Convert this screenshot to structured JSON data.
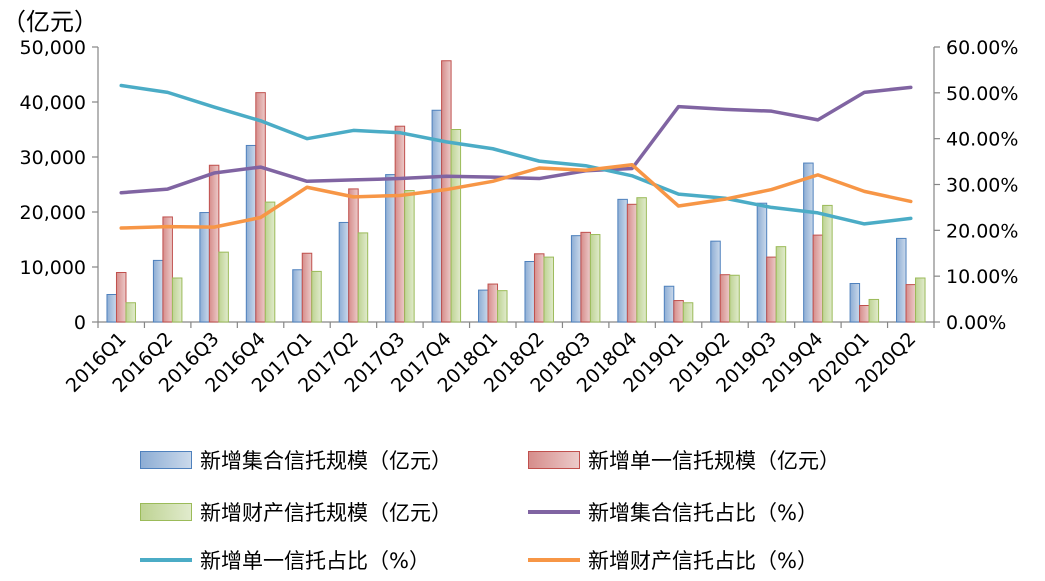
{
  "chart_data": {
    "type": "bar",
    "unit_label": "（亿元）",
    "categories": [
      "2016Q1",
      "2016Q2",
      "2016Q3",
      "2016Q4",
      "2017Q1",
      "2017Q2",
      "2017Q3",
      "2017Q4",
      "2018Q1",
      "2018Q2",
      "2018Q3",
      "2018Q4",
      "2019Q1",
      "2019Q2",
      "2019Q3",
      "2019Q4",
      "2020Q1",
      "2020Q2"
    ],
    "y_left": {
      "ticks": [
        "50,000",
        "40,000",
        "30,000",
        "20,000",
        "10,000",
        "0"
      ],
      "ylim": [
        0,
        50000
      ]
    },
    "y_right": {
      "ticks": [
        "60.00%",
        "50.00%",
        "40.00%",
        "30.00%",
        "20.00%",
        "10.00%",
        "0.00%"
      ],
      "ylim": [
        0,
        60
      ]
    },
    "grid": false,
    "legend_position": "bottom",
    "series": [
      {
        "name": "新增集合信托规模（亿元）",
        "kind": "bar",
        "axis": "left",
        "color": "#4F81BD",
        "values": [
          5000,
          11200,
          19900,
          32100,
          9500,
          18100,
          26800,
          38500,
          5800,
          11000,
          15700,
          22300,
          6500,
          14700,
          21600,
          28900,
          7000,
          15200
        ]
      },
      {
        "name": "新增单一信托规模（亿元）",
        "kind": "bar",
        "axis": "left",
        "color": "#C0504D",
        "values": [
          9000,
          19100,
          28500,
          41700,
          12500,
          24200,
          35600,
          47500,
          6900,
          12400,
          16300,
          21400,
          3900,
          8600,
          11800,
          15800,
          3000,
          6800
        ]
      },
      {
        "name": "新增财产信托规模（亿元）",
        "kind": "bar",
        "axis": "left",
        "color": "#9BBB59",
        "values": [
          3500,
          8000,
          12700,
          21800,
          9200,
          16200,
          23900,
          35000,
          5700,
          11800,
          15900,
          22600,
          3500,
          8500,
          13700,
          21200,
          4100,
          8000
        ]
      },
      {
        "name": "新增集合信托占比（%）",
        "kind": "line",
        "axis": "right",
        "color": "#8064A2",
        "values": [
          28.2,
          29.0,
          32.5,
          33.8,
          30.7,
          31.0,
          31.3,
          31.8,
          31.6,
          31.3,
          33.0,
          33.5,
          47.0,
          46.4,
          46.0,
          44.1,
          50.1,
          51.2
        ]
      },
      {
        "name": "新增单一信托占比（%）",
        "kind": "line",
        "axis": "right",
        "color": "#4BACC6",
        "values": [
          51.6,
          50.1,
          46.9,
          43.9,
          40.0,
          41.8,
          41.3,
          39.3,
          37.8,
          35.1,
          34.1,
          31.9,
          27.9,
          27.0,
          25.0,
          23.8,
          21.4,
          22.6
        ]
      },
      {
        "name": "新增财产信托占比（%）",
        "kind": "line",
        "axis": "right",
        "color": "#F79646",
        "values": [
          20.5,
          20.8,
          20.7,
          22.8,
          29.4,
          27.3,
          27.6,
          28.9,
          30.7,
          33.6,
          33.1,
          34.3,
          25.3,
          26.8,
          28.9,
          32.1,
          28.5,
          26.3
        ]
      }
    ]
  }
}
